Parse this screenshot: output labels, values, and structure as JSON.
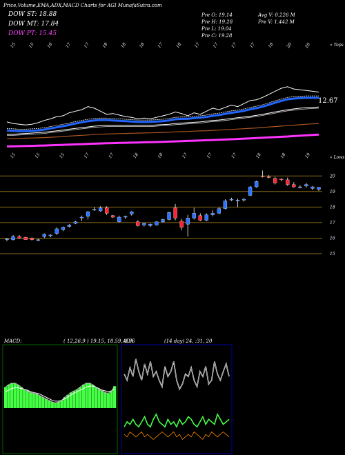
{
  "header": {
    "title": "Price,Volume,EMA,ADX,MACD Charts for AGI MunafaSutra.com",
    "legend": [
      {
        "label": "DOW ST: 18.88",
        "color": "#ffffff"
      },
      {
        "label": "DOW MT: 17.84",
        "color": "#ffffff"
      },
      {
        "label": "DOW PT: 15.45",
        "color": "#ff44ff"
      }
    ],
    "stats_left": [
      "Pre  O: 19.14",
      "Pre  H: 19.28",
      "Pre  L: 19.04",
      "Pre  C: 19.28"
    ],
    "stats_right": [
      "Avg V: 0.226  M",
      "Pre  V: 1.442  M"
    ]
  },
  "ema_panel": {
    "top_label": "« Tops",
    "bottom_label": "« Lows",
    "last_value_label": "12.67",
    "top_date_labels": [
      "15",
      "15",
      "16",
      "17",
      "17",
      "18",
      "18",
      "18",
      "17",
      "18",
      "17",
      "17",
      "17",
      "17",
      "18",
      "20",
      "20"
    ],
    "bottom_date_labels": [
      "15",
      "15",
      "15",
      "17",
      "17",
      "18",
      "18",
      "17",
      "17",
      "17",
      "18",
      "18",
      "19"
    ]
  },
  "price_panel": {
    "price_ticks": [
      "20",
      "19",
      "18",
      "17",
      "16",
      "15"
    ],
    "tick_color": "#ffffff",
    "line_color": "#8a6a1a",
    "up_color": "#2a72ff",
    "down_color": "#ff2233"
  },
  "macd_panel": {
    "label": "MACD:",
    "params": "( 12,26,9 ) 19.15,  18.59,  0.56",
    "histogram_color": "#44ff44",
    "box_color": "#006600"
  },
  "adx_panel": {
    "label": "ADX",
    "params": "(14  day) 24,  :31,  20",
    "plus_color": "#44ff44",
    "minus_color": "#ff8800",
    "box_color": "#0000aa"
  },
  "chart_data": {
    "type": "candlestick",
    "price_axis_ticks": [
      20,
      19,
      18,
      17,
      16,
      15
    ],
    "candles": [
      {
        "o": 15.9,
        "h": 16.0,
        "l": 15.8,
        "c": 15.95
      },
      {
        "o": 15.9,
        "h": 16.2,
        "l": 15.85,
        "c": 16.1
      },
      {
        "o": 16.1,
        "h": 16.2,
        "l": 15.95,
        "c": 16.0
      },
      {
        "o": 16.05,
        "h": 16.1,
        "l": 15.9,
        "c": 15.9
      },
      {
        "o": 16.0,
        "h": 16.05,
        "l": 15.85,
        "c": 15.9
      },
      {
        "o": 15.85,
        "h": 15.95,
        "l": 15.8,
        "c": 15.9
      },
      {
        "o": 16.1,
        "h": 16.3,
        "l": 16.0,
        "c": 16.25
      },
      {
        "o": 16.15,
        "h": 16.25,
        "l": 16.05,
        "c": 16.2
      },
      {
        "o": 16.3,
        "h": 16.7,
        "l": 16.2,
        "c": 16.6
      },
      {
        "o": 16.55,
        "h": 16.75,
        "l": 16.45,
        "c": 16.7
      },
      {
        "o": 16.75,
        "h": 16.9,
        "l": 16.7,
        "c": 16.85
      },
      {
        "o": 16.95,
        "h": 17.1,
        "l": 16.9,
        "c": 17.05
      },
      {
        "o": 17.3,
        "h": 17.45,
        "l": 17.1,
        "c": 17.35
      },
      {
        "o": 17.4,
        "h": 17.75,
        "l": 17.2,
        "c": 17.7
      },
      {
        "o": 17.85,
        "h": 18.0,
        "l": 17.75,
        "c": 17.85
      },
      {
        "o": 17.75,
        "h": 18.05,
        "l": 17.7,
        "c": 17.95
      },
      {
        "o": 17.95,
        "h": 18.05,
        "l": 17.5,
        "c": 17.6
      },
      {
        "o": 17.45,
        "h": 17.5,
        "l": 17.3,
        "c": 17.35
      },
      {
        "o": 17.05,
        "h": 17.45,
        "l": 17.0,
        "c": 17.35
      },
      {
        "o": 17.35,
        "h": 17.45,
        "l": 17.25,
        "c": 17.4
      },
      {
        "o": 17.55,
        "h": 17.75,
        "l": 17.45,
        "c": 17.7
      },
      {
        "o": 17.05,
        "h": 17.15,
        "l": 16.75,
        "c": 16.8
      },
      {
        "o": 16.85,
        "h": 17.0,
        "l": 16.75,
        "c": 16.95
      },
      {
        "o": 16.8,
        "h": 16.95,
        "l": 16.7,
        "c": 16.9
      },
      {
        "o": 16.85,
        "h": 17.1,
        "l": 16.8,
        "c": 17.05
      },
      {
        "o": 17.05,
        "h": 17.25,
        "l": 17.0,
        "c": 17.2
      },
      {
        "o": 17.2,
        "h": 17.7,
        "l": 17.15,
        "c": 17.65
      },
      {
        "o": 17.95,
        "h": 18.2,
        "l": 17.15,
        "c": 17.3
      },
      {
        "o": 17.1,
        "h": 17.25,
        "l": 16.5,
        "c": 16.7
      },
      {
        "o": 16.9,
        "h": 17.5,
        "l": 16.1,
        "c": 17.3
      },
      {
        "o": 17.3,
        "h": 17.95,
        "l": 17.2,
        "c": 17.6
      },
      {
        "o": 17.45,
        "h": 17.6,
        "l": 17.1,
        "c": 17.15
      },
      {
        "o": 17.15,
        "h": 17.6,
        "l": 17.1,
        "c": 17.5
      },
      {
        "o": 17.5,
        "h": 17.8,
        "l": 17.4,
        "c": 17.6
      },
      {
        "o": 17.6,
        "h": 18.0,
        "l": 17.55,
        "c": 17.9
      },
      {
        "o": 17.9,
        "h": 18.5,
        "l": 17.85,
        "c": 18.4
      },
      {
        "o": 18.5,
        "h": 18.6,
        "l": 18.4,
        "c": 18.5
      },
      {
        "o": 18.4,
        "h": 18.55,
        "l": 18.0,
        "c": 18.45
      },
      {
        "o": 18.45,
        "h": 18.6,
        "l": 18.35,
        "c": 18.5
      },
      {
        "o": 18.75,
        "h": 19.35,
        "l": 18.7,
        "c": 19.3
      },
      {
        "o": 19.3,
        "h": 19.7,
        "l": 19.25,
        "c": 19.65
      },
      {
        "o": 20.0,
        "h": 20.35,
        "l": 19.9,
        "c": 19.95
      },
      {
        "o": 19.95,
        "h": 20.05,
        "l": 19.85,
        "c": 19.9
      },
      {
        "o": 19.85,
        "h": 19.95,
        "l": 19.45,
        "c": 19.55
      },
      {
        "o": 19.8,
        "h": 19.85,
        "l": 19.65,
        "c": 19.75
      },
      {
        "o": 19.75,
        "h": 19.9,
        "l": 19.35,
        "c": 19.45
      },
      {
        "o": 19.45,
        "h": 19.6,
        "l": 19.25,
        "c": 19.3
      },
      {
        "o": 19.25,
        "h": 19.4,
        "l": 19.2,
        "c": 19.3
      },
      {
        "o": 19.35,
        "h": 19.55,
        "l": 19.25,
        "c": 19.45
      },
      {
        "o": 19.2,
        "h": 19.35,
        "l": 19.1,
        "c": 19.3
      },
      {
        "o": 19.14,
        "h": 19.28,
        "l": 19.04,
        "c": 19.28
      }
    ],
    "ema_close": [
      13.2,
      13.0,
      12.9,
      12.8,
      12.9,
      13.1,
      13.4,
      13.6,
      13.9,
      14.0,
      14.4,
      14.6,
      14.8,
      15.2,
      15.0,
      14.6,
      14.2,
      14.3,
      14.1,
      13.9,
      13.8,
      13.6,
      13.7,
      13.6,
      13.8,
      14.0,
      14.2,
      14.5,
      14.3,
      14.0,
      14.4,
      14.2,
      14.6,
      15.0,
      14.8,
      15.1,
      15.4,
      15.2,
      15.6,
      16.0,
      16.1,
      16.4,
      16.8,
      17.2,
      17.6,
      17.8,
      17.5,
      17.4,
      17.3,
      17.2,
      17.1
    ],
    "ema_short": [
      12.1,
      12.05,
      12.0,
      12.0,
      12.05,
      12.1,
      12.2,
      12.35,
      12.5,
      12.65,
      12.8,
      13.0,
      13.15,
      13.3,
      13.4,
      13.45,
      13.45,
      13.4,
      13.35,
      13.3,
      13.25,
      13.2,
      13.2,
      13.2,
      13.25,
      13.3,
      13.4,
      13.55,
      13.6,
      13.6,
      13.7,
      13.75,
      13.85,
      14.0,
      14.1,
      14.25,
      14.4,
      14.5,
      14.65,
      14.85,
      15.0,
      15.2,
      15.45,
      15.7,
      15.95,
      16.15,
      16.25,
      16.3,
      16.35,
      16.35,
      16.35
    ],
    "ema_mid": [
      11.6,
      11.6,
      11.65,
      11.7,
      11.75,
      11.8,
      11.85,
      11.95,
      12.05,
      12.15,
      12.25,
      12.35,
      12.45,
      12.55,
      12.65,
      12.7,
      12.75,
      12.75,
      12.75,
      12.75,
      12.75,
      12.75,
      12.75,
      12.75,
      12.8,
      12.85,
      12.9,
      13.0,
      13.05,
      13.1,
      13.15,
      13.2,
      13.3,
      13.4,
      13.45,
      13.55,
      13.65,
      13.75,
      13.85,
      13.95,
      14.05,
      14.2,
      14.35,
      14.5,
      14.65,
      14.8,
      14.9,
      15.0,
      15.05,
      15.1,
      15.15
    ],
    "ema_long": [
      11.0,
      11.02,
      11.05,
      11.08,
      11.1,
      11.13,
      11.16,
      11.2,
      11.25,
      11.3,
      11.35,
      11.4,
      11.45,
      11.5,
      11.55,
      11.6,
      11.62,
      11.65,
      11.68,
      11.7,
      11.72,
      11.74,
      11.76,
      11.78,
      11.8,
      11.83,
      11.86,
      11.9,
      11.93,
      11.96,
      12.0,
      12.03,
      12.06,
      12.1,
      12.14,
      12.18,
      12.22,
      12.27,
      12.32,
      12.37,
      12.42,
      12.48,
      12.54,
      12.6,
      12.66,
      12.72,
      12.78,
      12.84,
      12.9,
      12.95,
      13.0
    ],
    "ema_trend": [
      10.0,
      10.02,
      10.04,
      10.06,
      10.08,
      10.1,
      10.12,
      10.15,
      10.18,
      10.21,
      10.24,
      10.27,
      10.3,
      10.33,
      10.36,
      10.39,
      10.42,
      10.44,
      10.46,
      10.48,
      10.5,
      10.52,
      10.54,
      10.56,
      10.58,
      10.6,
      10.63,
      10.66,
      10.69,
      10.72,
      10.75,
      10.78,
      10.81,
      10.84,
      10.87,
      10.9,
      10.94,
      10.98,
      11.02,
      11.06,
      11.1,
      11.14,
      11.18,
      11.22,
      11.26,
      11.3,
      11.35,
      11.4,
      11.45,
      11.5,
      11.55
    ],
    "macd": {
      "params": [
        12,
        26,
        9
      ],
      "values": [
        19.15,
        18.59,
        0.56
      ],
      "macd_line": [
        0.55,
        0.58,
        0.6,
        0.6,
        0.58,
        0.55,
        0.52,
        0.5,
        0.48,
        0.47,
        0.46,
        0.44,
        0.42,
        0.4,
        0.38,
        0.36,
        0.35,
        0.36,
        0.38,
        0.42,
        0.45,
        0.48,
        0.5,
        0.52,
        0.55,
        0.58,
        0.6,
        0.6,
        0.58,
        0.55,
        0.52,
        0.5,
        0.48,
        0.47,
        0.5,
        0.56
      ],
      "signal_line": [
        0.5,
        0.52,
        0.54,
        0.55,
        0.55,
        0.54,
        0.53,
        0.52,
        0.5,
        0.49,
        0.48,
        0.47,
        0.45,
        0.43,
        0.41,
        0.39,
        0.38,
        0.38,
        0.39,
        0.41,
        0.43,
        0.46,
        0.48,
        0.5,
        0.52,
        0.54,
        0.56,
        0.57,
        0.57,
        0.56,
        0.54,
        0.52,
        0.51,
        0.5,
        0.51,
        0.53
      ]
    },
    "adx": {
      "period_days": 14,
      "values": [
        24,
        31,
        20
      ],
      "adx_line": [
        60,
        55,
        65,
        58,
        72,
        62,
        55,
        68,
        60,
        70,
        58,
        62,
        55,
        50,
        66,
        58,
        62,
        70,
        55,
        48,
        52,
        60,
        58,
        65,
        55,
        50,
        62,
        58,
        66,
        52,
        55,
        70,
        60,
        55,
        62,
        68,
        58
      ],
      "plus_di": [
        18,
        22,
        20,
        24,
        20,
        18,
        22,
        26,
        20,
        18,
        24,
        28,
        22,
        20,
        18,
        24,
        20,
        22,
        18,
        24,
        20,
        22,
        26,
        24,
        20,
        18,
        22,
        26,
        20,
        24,
        22,
        20,
        28,
        24,
        20,
        22,
        24
      ],
      "minus_di": [
        12,
        10,
        14,
        12,
        10,
        12,
        14,
        10,
        12,
        10,
        8,
        10,
        12,
        14,
        12,
        10,
        12,
        14,
        10,
        12,
        8,
        10,
        12,
        10,
        14,
        12,
        10,
        8,
        12,
        10,
        14,
        12,
        10,
        12,
        14,
        12,
        10
      ]
    }
  }
}
